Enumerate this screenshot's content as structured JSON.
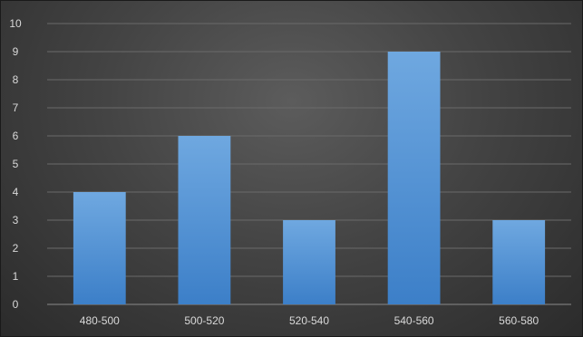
{
  "chart_data": {
    "type": "bar",
    "categories": [
      "480-500",
      "500-520",
      "520-540",
      "540-560",
      "560-580"
    ],
    "values": [
      4,
      6,
      3,
      9,
      3
    ],
    "ylim": [
      0,
      10
    ],
    "yticks": [
      "0",
      "1",
      "2",
      "3",
      "4",
      "5",
      "6",
      "7",
      "8",
      "9",
      "10"
    ],
    "grid": true,
    "legend": "none",
    "colors": {
      "bar_top": "#6fa8e0",
      "bar_bottom": "#3c7fc8",
      "gridline": "#6a6a6a",
      "tick_text": "#d9d9d9"
    }
  }
}
